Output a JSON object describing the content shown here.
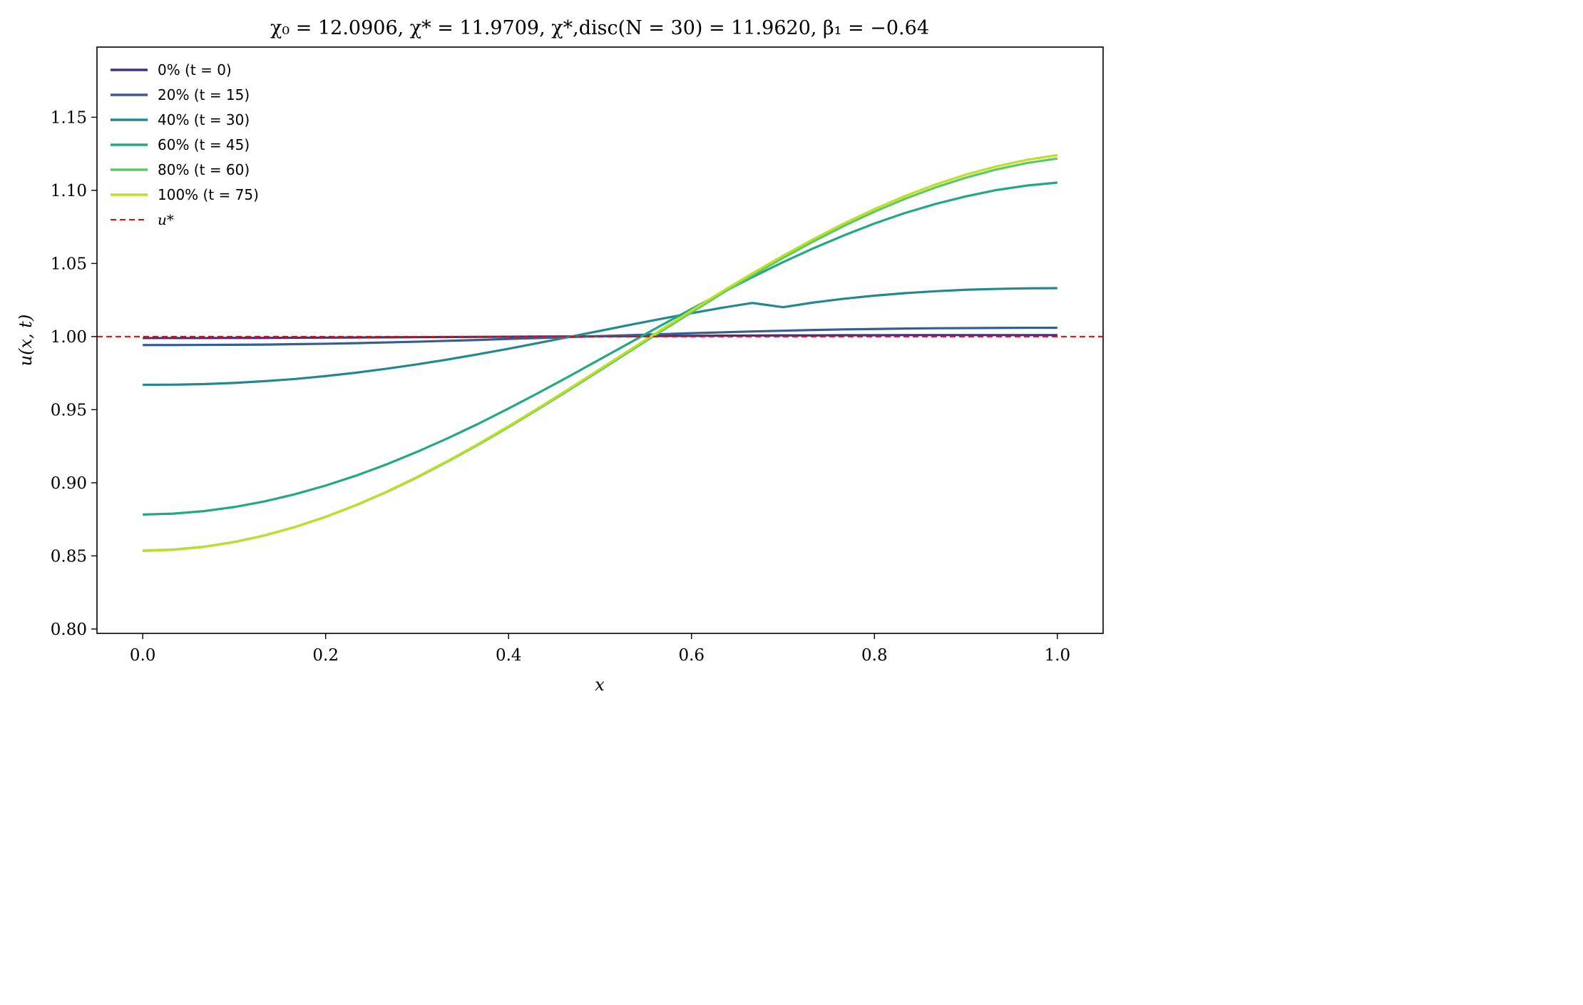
{
  "chart_data": {
    "type": "line",
    "title": "χ₀ = 12.0906,  χ* = 11.9709,  χ*,disc(N = 30) = 11.9620,  β₁ = −0.64",
    "xlabel": "x",
    "ylabel": "u(x, t)",
    "xlim": [
      -0.05,
      1.05
    ],
    "ylim": [
      0.797,
      1.198
    ],
    "xticks": [
      0.0,
      0.2,
      0.4,
      0.6,
      0.8,
      1.0
    ],
    "xtick_labels": [
      "0.0",
      "0.2",
      "0.4",
      "0.6",
      "0.8",
      "1.0"
    ],
    "yticks": [
      0.8,
      0.85,
      0.9,
      0.95,
      1.0,
      1.05,
      1.1,
      1.15
    ],
    "ytick_labels": [
      "0.80",
      "0.85",
      "0.90",
      "0.95",
      "1.00",
      "1.05",
      "1.10",
      "1.15"
    ],
    "grid": false,
    "legend_position": "top-left",
    "x": [
      0.0,
      0.0333,
      0.0667,
      0.1,
      0.1333,
      0.1667,
      0.2,
      0.2333,
      0.2667,
      0.3,
      0.3333,
      0.3667,
      0.4,
      0.4333,
      0.4667,
      0.5,
      0.5333,
      0.5667,
      0.6,
      0.6333,
      0.6667,
      0.7,
      0.7333,
      0.7667,
      0.8,
      0.8333,
      0.8667,
      0.9,
      0.9333,
      0.9667,
      1.0
    ],
    "series": [
      {
        "name": "0% (t = 0)",
        "color": "#472f7d",
        "values": [
          0.999,
          0.999,
          0.999,
          0.9991,
          0.9991,
          0.9992,
          0.9993,
          0.9994,
          0.9995,
          0.9996,
          0.9997,
          0.9998,
          0.9999,
          1.0,
          1.0001,
          1.0002,
          1.0003,
          1.0004,
          1.0005,
          1.0006,
          1.0007,
          1.0008,
          1.0008,
          1.0009,
          1.0009,
          1.001,
          1.001,
          1.001,
          1.001,
          1.001,
          1.001
        ]
      },
      {
        "name": "20% (t = 15)",
        "color": "#355f8d",
        "values": [
          0.9942,
          0.9942,
          0.9943,
          0.9944,
          0.9945,
          0.9948,
          0.9951,
          0.9955,
          0.996,
          0.9965,
          0.9971,
          0.9977,
          0.9984,
          0.999,
          0.9997,
          1.0003,
          1.001,
          1.0016,
          1.0023,
          1.0029,
          1.0035,
          1.004,
          1.0045,
          1.0049,
          1.0052,
          1.0055,
          1.0057,
          1.0058,
          1.0059,
          1.006,
          1.006
        ]
      },
      {
        "name": "40% (t = 30)",
        "color": "#23898e",
        "values": [
          0.967,
          0.9671,
          0.9675,
          0.9683,
          0.9695,
          0.971,
          0.973,
          0.9753,
          0.978,
          0.981,
          0.9843,
          0.9879,
          0.9917,
          0.9957,
          0.9998,
          1.0039,
          1.0081,
          1.0121,
          1.016,
          1.0197,
          1.023,
          1.0201,
          1.0233,
          1.0259,
          1.028,
          1.0297,
          1.031,
          1.032,
          1.0326,
          1.033,
          1.0331
        ]
      },
      {
        "name": "60% (t = 45)",
        "color": "#22a884",
        "values": [
          0.8783,
          0.8789,
          0.8806,
          0.8834,
          0.8873,
          0.8922,
          0.8981,
          0.9049,
          0.9126,
          0.9212,
          0.9304,
          0.9403,
          0.9508,
          0.9617,
          0.973,
          0.9845,
          0.996,
          1.0076,
          1.0189,
          1.03,
          1.0407,
          1.0509,
          1.0604,
          1.0692,
          1.0773,
          1.0845,
          1.0907,
          1.0959,
          1.1002,
          1.1033,
          1.1053
        ]
      },
      {
        "name": "80% (t = 60)",
        "color": "#5ec962",
        "values": [
          0.8536,
          0.8543,
          0.8562,
          0.8595,
          0.864,
          0.8698,
          0.8767,
          0.8847,
          0.8937,
          0.9037,
          0.9145,
          0.926,
          0.9381,
          0.9507,
          0.9637,
          0.9769,
          0.9902,
          1.0035,
          1.0166,
          1.0295,
          1.0419,
          1.0538,
          1.0651,
          1.0757,
          1.0854,
          1.0942,
          1.102,
          1.1087,
          1.1143,
          1.1187,
          1.1218
        ]
      },
      {
        "name": "100% (t = 75)",
        "color": "#bddf26",
        "values": [
          0.8534,
          0.8541,
          0.8561,
          0.8594,
          0.864,
          0.8698,
          0.8767,
          0.8848,
          0.8939,
          0.904,
          0.9149,
          0.9265,
          0.9387,
          0.9514,
          0.9645,
          0.9778,
          0.9912,
          1.0046,
          1.0178,
          1.0308,
          1.0433,
          1.0553,
          1.0667,
          1.0774,
          1.0872,
          1.0961,
          1.104,
          1.1108,
          1.1164,
          1.1209,
          1.1241
        ]
      },
      {
        "name": "u*",
        "color": "#ff0000",
        "dashed": true,
        "constant": 1.0
      }
    ]
  }
}
